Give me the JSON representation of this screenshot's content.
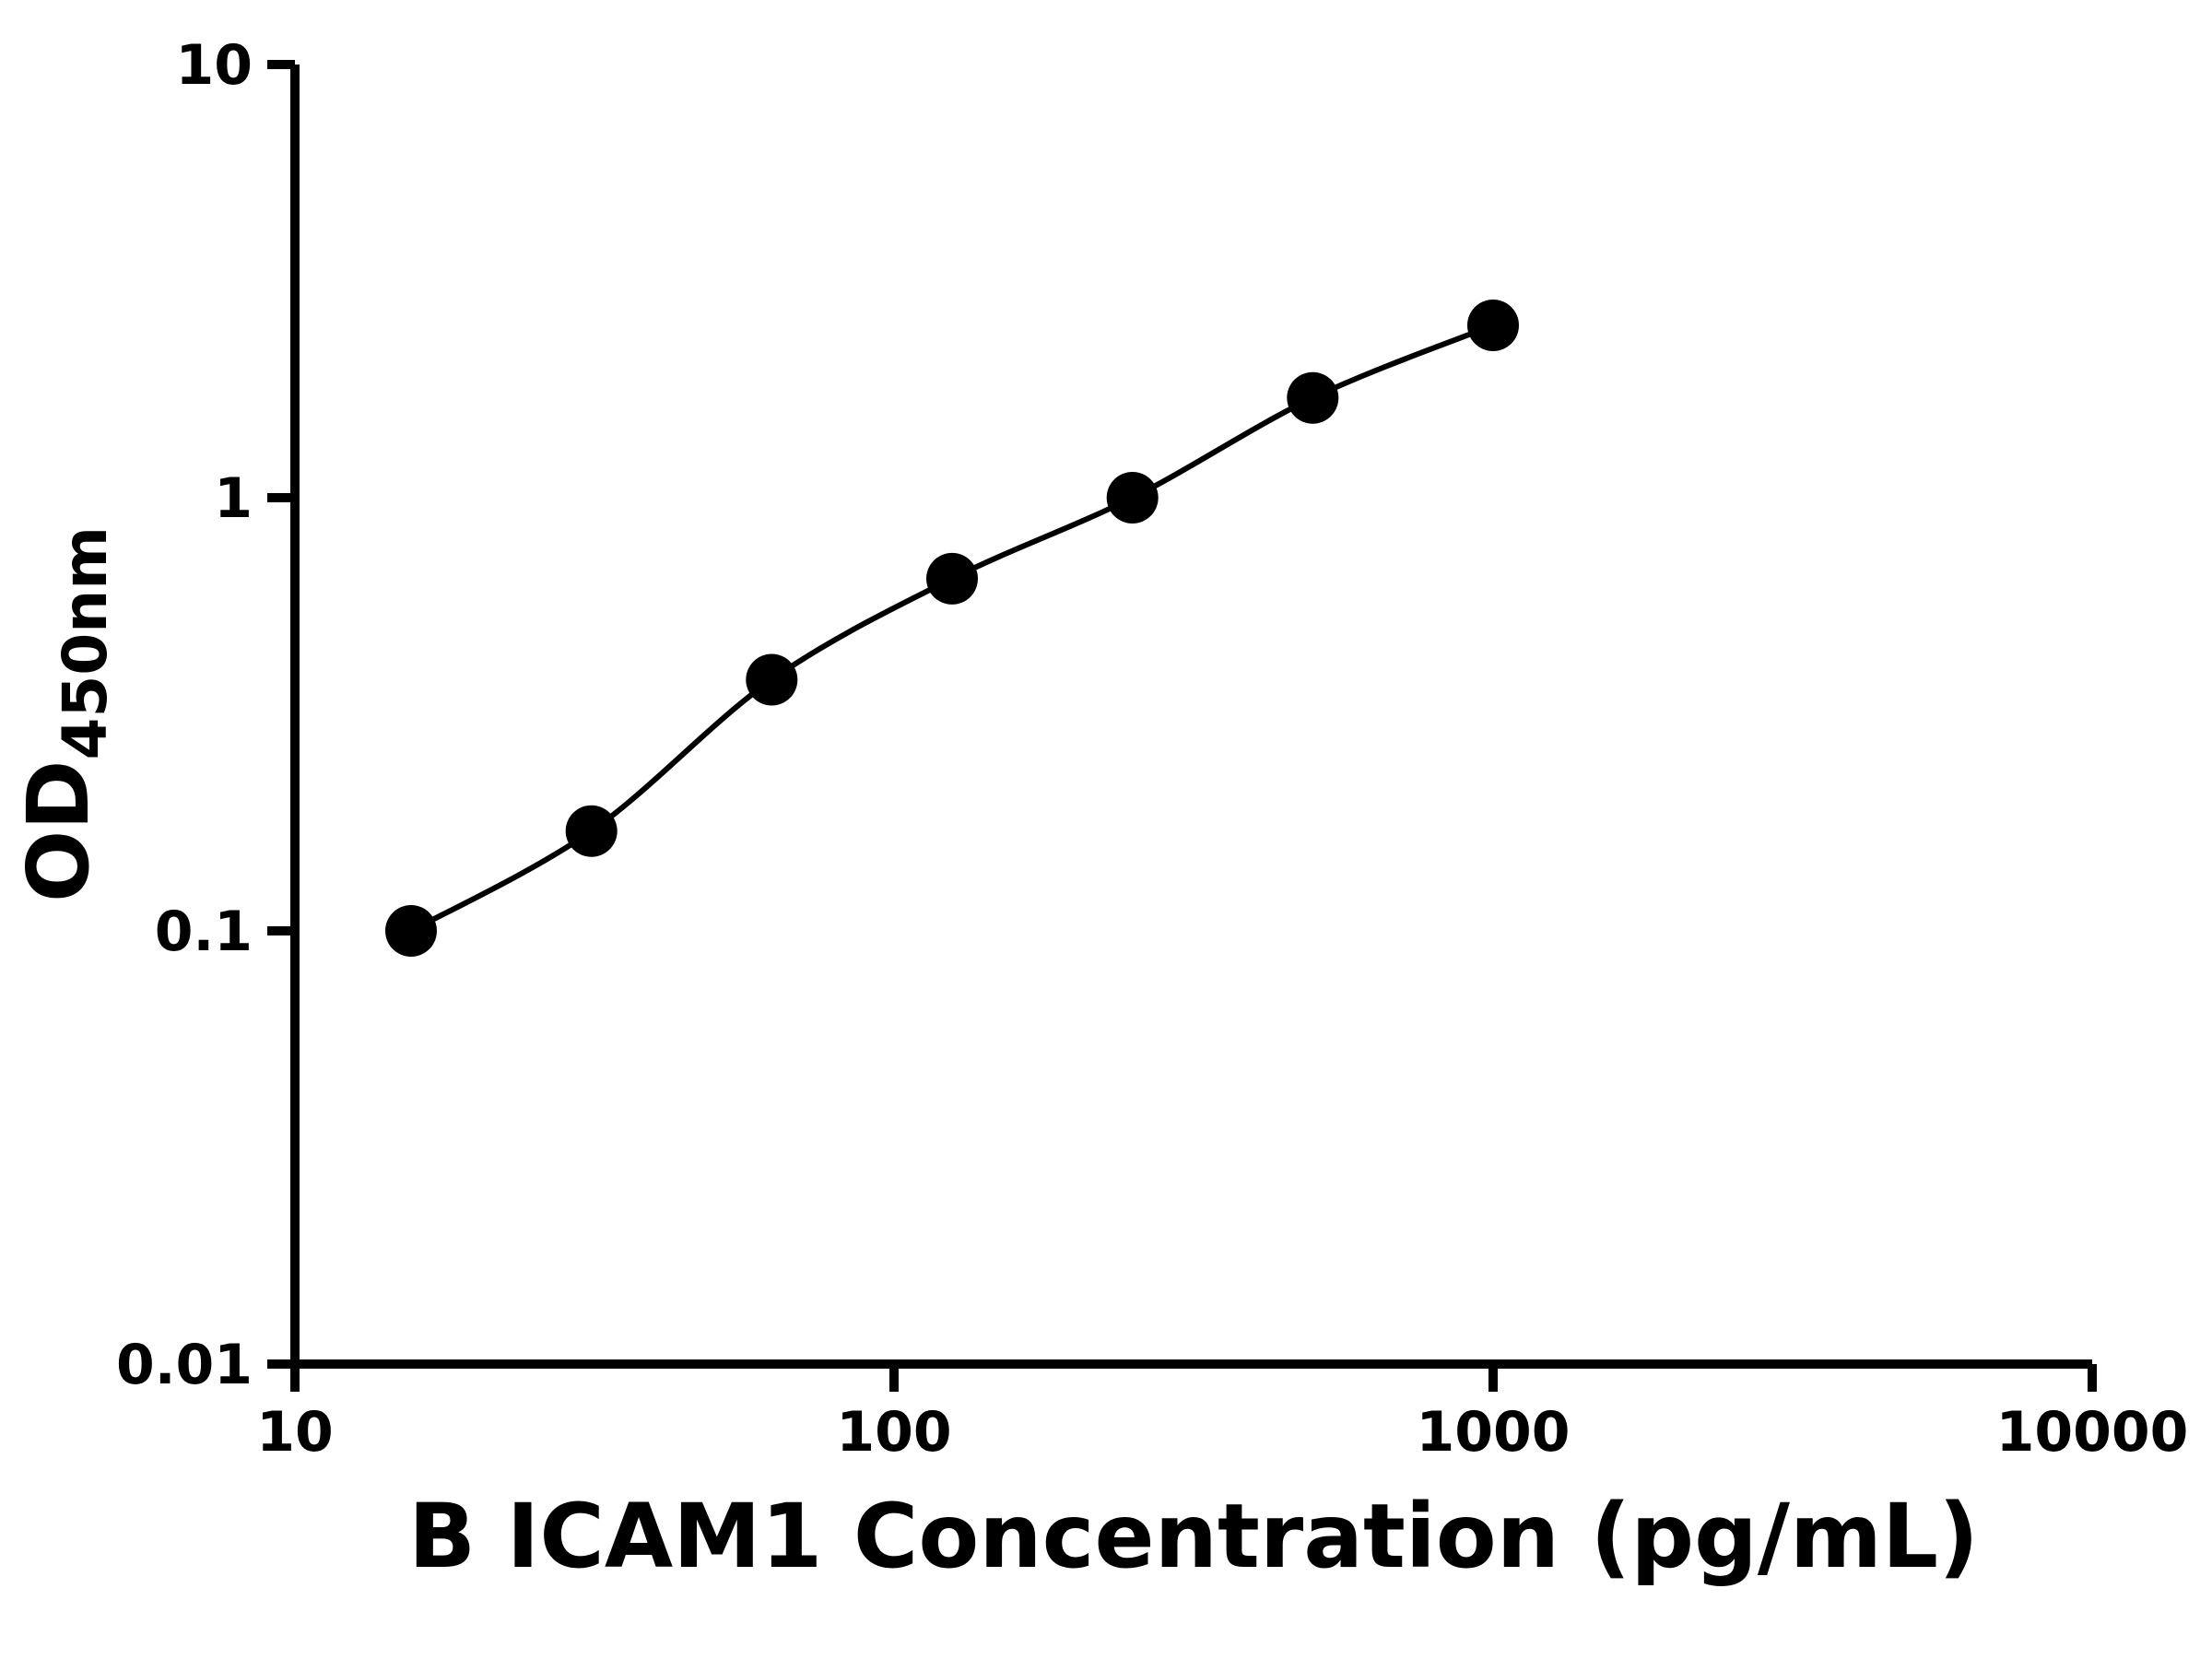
{
  "chart_data": {
    "type": "scatter",
    "title": "",
    "xlabel": "B ICAM1 Concentration (pg/mL)",
    "ylabel": "OD",
    "ylabel_subscript": "450nm",
    "x": [
      15.625,
      31.25,
      62.5,
      125,
      250,
      500,
      1000
    ],
    "y": [
      0.1,
      0.17,
      0.38,
      0.65,
      1.0,
      1.7,
      2.5
    ],
    "xscale": "log",
    "yscale": "log",
    "xlim": [
      10,
      10000
    ],
    "ylim": [
      0.01,
      10
    ],
    "x_ticks": [
      10,
      100,
      1000,
      10000
    ],
    "x_tick_labels": [
      "10",
      "100",
      "1000",
      "10000"
    ],
    "y_ticks": [
      0.01,
      0.1,
      1,
      10
    ],
    "y_tick_labels": [
      "0.01",
      "0.1",
      "1",
      "10"
    ],
    "grid": false,
    "legend": null,
    "curve_through_points": true,
    "marker_color": "#000000",
    "line_color": "#000000",
    "axis_color": "#000000",
    "background": "#ffffff"
  }
}
